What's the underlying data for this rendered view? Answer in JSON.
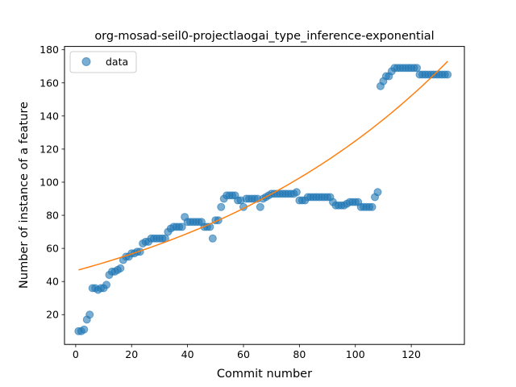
{
  "chart_data": {
    "type": "scatter",
    "title": "org-mosad-seil0-projectlaogai_type_inference-exponential",
    "xlabel": "Commit number",
    "ylabel": "Number of instance of a feature",
    "xlim": [
      -4,
      139
    ],
    "ylim": [
      2,
      182
    ],
    "xticks": [
      0,
      20,
      40,
      60,
      80,
      100,
      120
    ],
    "yticks": [
      20,
      40,
      60,
      80,
      100,
      120,
      140,
      160,
      180
    ],
    "grid": false,
    "legend": {
      "position": "top-left",
      "entries": [
        "data"
      ]
    },
    "colors": {
      "data": "#1f77b4",
      "fit": "#ff7f0e"
    },
    "series": [
      {
        "name": "data",
        "kind": "scatter",
        "x": [
          1,
          2,
          3,
          4,
          5,
          6,
          7,
          8,
          9,
          10,
          11,
          12,
          13,
          14,
          15,
          16,
          17,
          18,
          19,
          20,
          21,
          22,
          23,
          24,
          25,
          26,
          27,
          28,
          29,
          30,
          31,
          32,
          33,
          34,
          35,
          36,
          37,
          38,
          39,
          40,
          41,
          42,
          43,
          44,
          45,
          46,
          47,
          48,
          49,
          50,
          51,
          52,
          53,
          54,
          55,
          56,
          57,
          58,
          59,
          60,
          61,
          62,
          63,
          64,
          65,
          66,
          67,
          68,
          69,
          70,
          71,
          72,
          73,
          74,
          75,
          76,
          77,
          78,
          79,
          80,
          81,
          82,
          83,
          84,
          85,
          86,
          87,
          88,
          89,
          90,
          91,
          92,
          93,
          94,
          95,
          96,
          97,
          98,
          99,
          100,
          101,
          102,
          103,
          104,
          105,
          106,
          107,
          108,
          109,
          110,
          111,
          112,
          113,
          114,
          115,
          116,
          117,
          118,
          119,
          120,
          121,
          122,
          123,
          124,
          125,
          126,
          127,
          128,
          129,
          130,
          131,
          132,
          133
        ],
        "y": [
          10,
          10,
          11,
          17,
          20,
          36,
          36,
          35,
          36,
          36,
          38,
          44,
          46,
          46,
          47,
          48,
          53,
          55,
          55,
          57,
          57,
          58,
          58,
          63,
          64,
          64,
          66,
          66,
          66,
          66,
          66,
          66,
          70,
          72,
          73,
          73,
          73,
          73,
          79,
          76,
          76,
          76,
          76,
          76,
          76,
          73,
          73,
          73,
          66,
          77,
          77,
          85,
          90,
          92,
          92,
          92,
          92,
          89,
          89,
          85,
          90,
          90,
          90,
          90,
          90,
          85,
          90,
          91,
          92,
          93,
          93,
          93,
          93,
          93,
          93,
          93,
          93,
          93,
          94,
          89,
          89,
          89,
          91,
          91,
          91,
          91,
          91,
          91,
          91,
          91,
          91,
          88,
          86,
          86,
          86,
          86,
          87,
          88,
          88,
          88,
          88,
          85,
          85,
          85,
          85,
          85,
          91,
          94,
          158,
          161,
          164,
          164,
          167,
          169,
          169,
          169,
          169,
          169,
          169,
          169,
          169,
          169,
          165,
          165,
          165,
          165,
          165,
          165,
          165,
          165,
          165,
          165,
          165
        ]
      },
      {
        "name": "",
        "kind": "line",
        "model": "exponential",
        "x_range": [
          1,
          133
        ],
        "y_start": 47,
        "y_end": 173
      }
    ]
  }
}
